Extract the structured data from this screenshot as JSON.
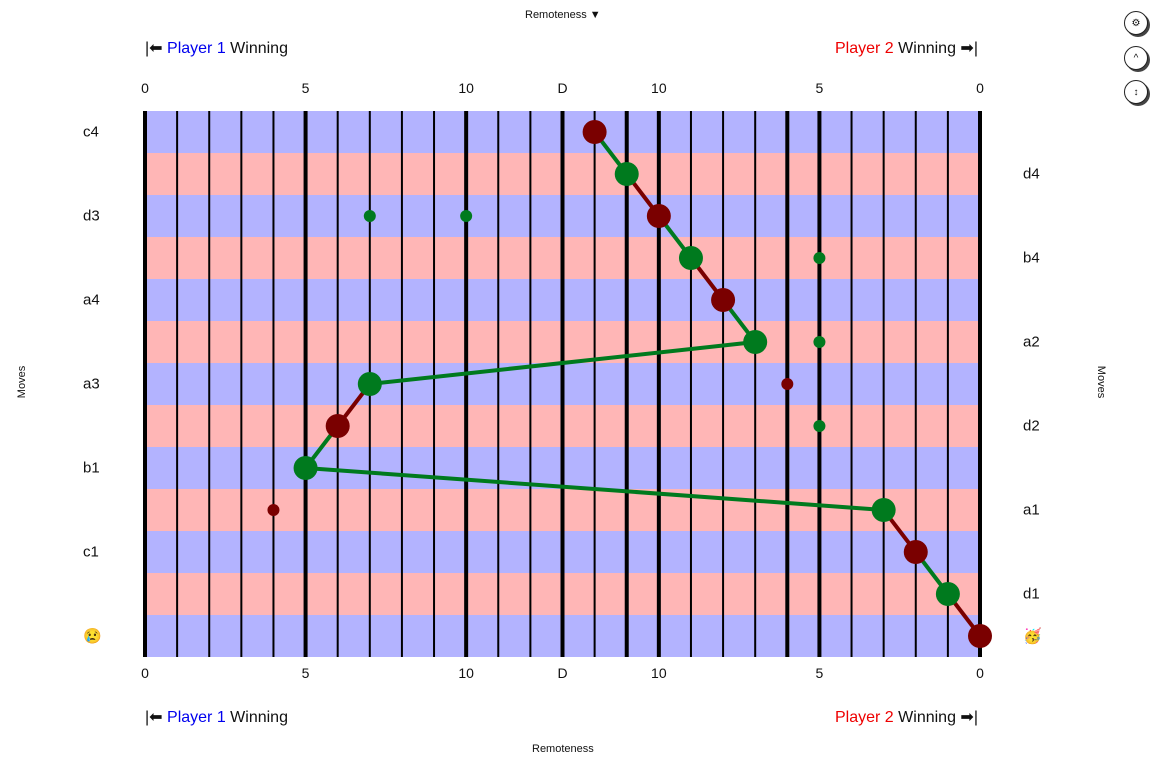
{
  "header": {
    "remoteness_title": "Remoteness ▼",
    "remoteness_footer": "Remoteness",
    "player1_arrow": "|⬅",
    "player1_name": "Player 1",
    "player1_suffix": "Winning",
    "player2_name": "Player 2",
    "player2_suffix": "Winning",
    "player2_arrow": "➡|"
  },
  "controls": [
    {
      "icon": "gear-icon",
      "glyph": "⚙"
    },
    {
      "icon": "caret-up-icon",
      "glyph": "^"
    },
    {
      "icon": "updown-arrow-icon",
      "glyph": "↕"
    }
  ],
  "side_labels": {
    "left": "Moves",
    "right": "Moves"
  },
  "colors": {
    "row_blue": "#b3b3ff",
    "row_red": "#ffb6b6",
    "win_green": "#007a1e",
    "lose_red": "#7a0000"
  },
  "chart_data": {
    "type": "scatter",
    "x_axis_ticks": [
      "0",
      "5",
      "10",
      "D",
      "10",
      "5",
      "0"
    ],
    "x_axis_title": "Remoteness",
    "left_move_labels": [
      "c4",
      "d3",
      "a4",
      "a3",
      "b1",
      "c1",
      "😢"
    ],
    "right_move_labels": [
      "d4",
      "b4",
      "a2",
      "d2",
      "a1",
      "d1",
      "🥳"
    ],
    "path": [
      {
        "side": "p2",
        "remoteness": 12,
        "color": "lose_red"
      },
      {
        "side": "p2",
        "remoteness": 11,
        "color": "win_green"
      },
      {
        "side": "p2",
        "remoteness": 10,
        "color": "lose_red"
      },
      {
        "side": "p2",
        "remoteness": 9,
        "color": "win_green"
      },
      {
        "side": "p2",
        "remoteness": 8,
        "color": "lose_red"
      },
      {
        "side": "p2",
        "remoteness": 7,
        "color": "win_green"
      },
      {
        "side": "p1",
        "remoteness": 7,
        "color": "win_green"
      },
      {
        "side": "p1",
        "remoteness": 6,
        "color": "lose_red"
      },
      {
        "side": "p1",
        "remoteness": 5,
        "color": "win_green"
      },
      {
        "side": "p2",
        "remoteness": 3,
        "color": "win_green"
      },
      {
        "side": "p2",
        "remoteness": 2,
        "color": "lose_red"
      },
      {
        "side": "p2",
        "remoteness": 1,
        "color": "win_green"
      },
      {
        "side": "p2",
        "remoteness": 0,
        "color": "lose_red"
      }
    ],
    "alternative_moves": [
      {
        "row": 2,
        "side": "p1",
        "remoteness": 7,
        "color": "win_green"
      },
      {
        "row": 2,
        "side": "p1",
        "remoteness": 10,
        "color": "win_green"
      },
      {
        "row": 3,
        "side": "p2",
        "remoteness": 5,
        "color": "win_green"
      },
      {
        "row": 5,
        "side": "p2",
        "remoteness": 5,
        "color": "win_green"
      },
      {
        "row": 6,
        "side": "p2",
        "remoteness": 6,
        "color": "lose_red"
      },
      {
        "row": 7,
        "side": "p2",
        "remoteness": 5,
        "color": "win_green"
      },
      {
        "row": 9,
        "side": "p1",
        "remoteness": 4,
        "color": "lose_red"
      }
    ]
  }
}
